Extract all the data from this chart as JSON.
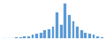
{
  "values": [
    0,
    0,
    0,
    1,
    1,
    2,
    2,
    3,
    4,
    5,
    7,
    8,
    10,
    22,
    12,
    30,
    20,
    15,
    10,
    7,
    5,
    4,
    3,
    2,
    1
  ],
  "bar_color": "#5B9BD5",
  "edge_color": "#5B9BD5",
  "background_color": "#ffffff",
  "bar_width": 0.6,
  "linewidth": 0.2
}
